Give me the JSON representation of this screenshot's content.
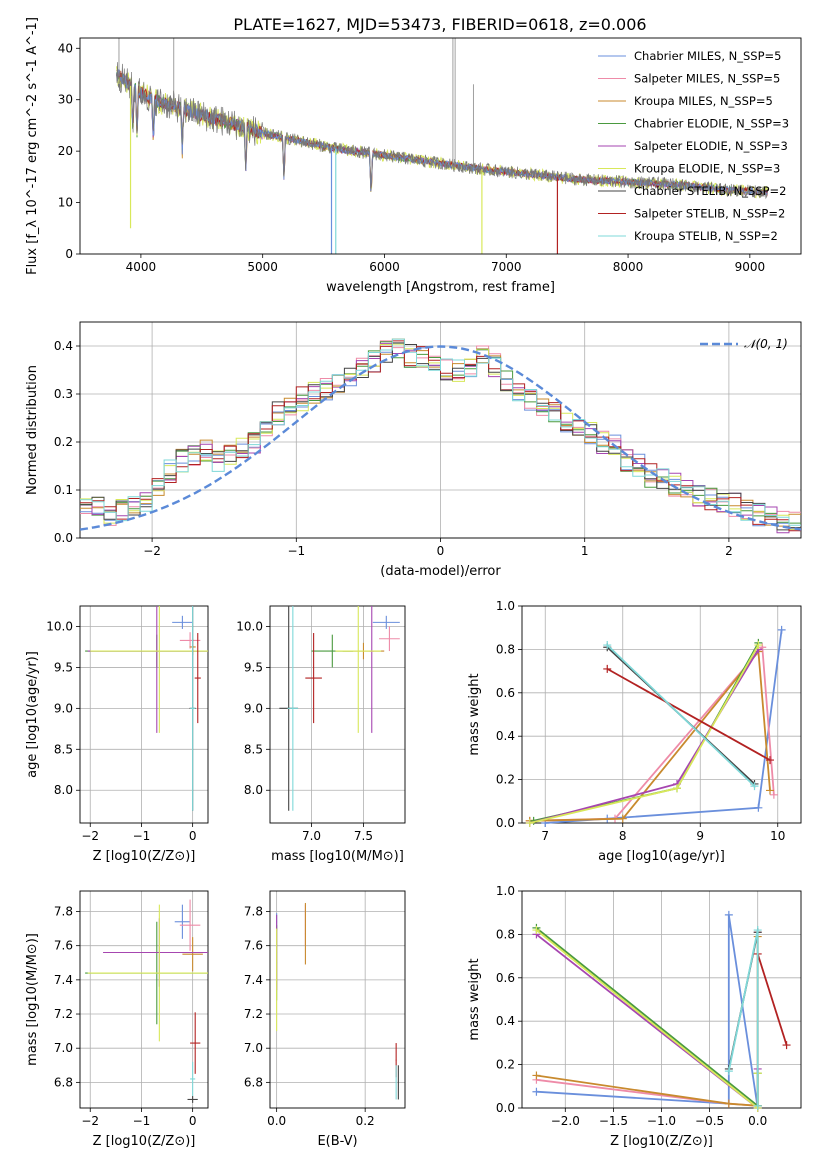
{
  "figure": {
    "title": "PLATE=1627, MJD=53473, FIBERID=0618, z=0.006"
  },
  "palette": [
    "#6a8fdc",
    "#ee8ba8",
    "#c88a2e",
    "#4a9a3f",
    "#a646b0",
    "#d8e85a",
    "#444444",
    "#b22222",
    "#7fd8d8"
  ],
  "chart_data": [
    {
      "type": "line",
      "id": "spectrum",
      "title": "PLATE=1627, MJD=53473, FIBERID=0618, z=0.006",
      "xlabel": "wavelength [Angstrom, rest frame]",
      "ylabel": "Flux [f_λ 10^-17 erg cm^-2 s^-1 A^-1]",
      "xlim": [
        3500,
        9420
      ],
      "ylim": [
        0,
        42
      ],
      "xticks": [
        4000,
        5000,
        6000,
        7000,
        8000,
        9000
      ],
      "yticks": [
        0,
        10,
        20,
        30,
        40
      ],
      "grid": false,
      "legend_position": "upper right",
      "series": [
        {
          "name": "Chabrier MILES, N_SSP=5",
          "kind": "model"
        },
        {
          "name": "Salpeter MILES, N_SSP=5",
          "kind": "model"
        },
        {
          "name": "Kroupa MILES, N_SSP=5",
          "kind": "model"
        },
        {
          "name": "Chabrier ELODIE, N_SSP=3",
          "kind": "model"
        },
        {
          "name": "Salpeter ELODIE, N_SSP=3",
          "kind": "model"
        },
        {
          "name": "Kroupa ELODIE, N_SSP=3",
          "kind": "model"
        },
        {
          "name": "Chabrier STELIB, N_SSP=2",
          "kind": "model"
        },
        {
          "name": "Salpeter STELIB, N_SSP=2",
          "kind": "model"
        },
        {
          "name": "Kroupa STELIB, N_SSP=2",
          "kind": "model"
        }
      ],
      "continuum_points": [
        [
          3800,
          35
        ],
        [
          3950,
          32
        ],
        [
          4100,
          30
        ],
        [
          4300,
          28.5
        ],
        [
          4500,
          27
        ],
        [
          4800,
          25
        ],
        [
          5000,
          23.5
        ],
        [
          5300,
          22
        ],
        [
          5600,
          20.5
        ],
        [
          5900,
          19.5
        ],
        [
          6200,
          18.5
        ],
        [
          6500,
          17.5
        ],
        [
          6800,
          16.5
        ],
        [
          7200,
          15.5
        ],
        [
          7600,
          14.5
        ],
        [
          8000,
          14
        ],
        [
          8400,
          13.5
        ],
        [
          8800,
          12.5
        ],
        [
          9150,
          12
        ]
      ]
    },
    {
      "type": "line",
      "id": "residuals",
      "xlabel": "(data-model)/error",
      "ylabel": "Normed distribution",
      "xlim": [
        -2.5,
        2.5
      ],
      "ylim": [
        0,
        0.45
      ],
      "xticks": [
        -2,
        -1,
        0,
        1,
        2
      ],
      "yticks": [
        0.0,
        0.1,
        0.2,
        0.3,
        0.4
      ],
      "grid": true,
      "legend_position": "upper right",
      "reference": {
        "name": "𝒩(0, 1)",
        "mean": 0,
        "sigma": 1
      },
      "hist_profile": [
        0.07,
        0.06,
        0.05,
        0.06,
        0.07,
        0.08,
        0.1,
        0.14,
        0.16,
        0.17,
        0.18,
        0.16,
        0.17,
        0.19,
        0.2,
        0.22,
        0.26,
        0.28,
        0.29,
        0.3,
        0.31,
        0.32,
        0.34,
        0.35,
        0.37,
        0.39,
        0.39,
        0.38,
        0.38,
        0.36,
        0.35,
        0.35,
        0.36,
        0.38,
        0.36,
        0.33,
        0.31,
        0.29,
        0.27,
        0.26,
        0.24,
        0.23,
        0.22,
        0.2,
        0.19,
        0.16,
        0.15,
        0.13,
        0.12,
        0.11,
        0.1,
        0.09,
        0.08,
        0.07,
        0.07,
        0.06,
        0.05,
        0.04,
        0.035,
        0.03
      ]
    },
    {
      "type": "scatter",
      "id": "age-vs-z",
      "xlabel": "Z [log10(Z/Z⊙)]",
      "ylabel": "age [log10(age/yr)]",
      "xlim": [
        -2.2,
        0.3
      ],
      "ylim": [
        7.6,
        10.25
      ],
      "xticks": [
        -2,
        -1,
        0
      ],
      "yticks": [
        8.0,
        8.5,
        9.0,
        9.5,
        10.0
      ],
      "grid": true,
      "points": [
        {
          "x": -0.2,
          "y": 10.05,
          "xerr": 0.2,
          "yerr": 0.08,
          "c": 0
        },
        {
          "x": -0.05,
          "y": 9.83,
          "xerr": 0.2,
          "yerr": 0.1,
          "c": 1
        },
        {
          "x": 0.0,
          "y": 9.75,
          "xerr": 0.06,
          "yerr": 0.1,
          "c": 2
        },
        {
          "x": -0.7,
          "y": 9.7,
          "xerr": 1.4,
          "yerr": 0.2,
          "c": 3
        },
        {
          "x": -0.7,
          "y": 9.7,
          "xerr": 1.35,
          "yerr": 1.0,
          "c": 4
        },
        {
          "x": -0.65,
          "y": 9.7,
          "xerr": 1.35,
          "yerr": 1.0,
          "c": 5
        },
        {
          "x": 0.0,
          "y": 9.0,
          "xerr": 0.06,
          "yerr": 1.25,
          "c": 6
        },
        {
          "x": 0.1,
          "y": 9.37,
          "xerr": 0.06,
          "yerr": 0.55,
          "c": 7
        },
        {
          "x": 0.0,
          "y": 9.0,
          "xerr": 0.05,
          "yerr": 1.25,
          "c": 8
        }
      ]
    },
    {
      "type": "scatter",
      "id": "age-vs-mass",
      "xlabel": "mass [log10(M/M⊙)]",
      "ylabel": "",
      "xlim": [
        6.6,
        7.9
      ],
      "ylim": [
        7.6,
        10.25
      ],
      "xticks": [
        7.0,
        7.5
      ],
      "yticks": [
        8.0,
        8.5,
        9.0,
        9.5,
        10.0
      ],
      "grid": true,
      "points": [
        {
          "x": 7.72,
          "y": 10.05,
          "xerr": 0.13,
          "yerr": 0.08,
          "c": 0
        },
        {
          "x": 7.75,
          "y": 9.85,
          "xerr": 0.1,
          "yerr": 0.15,
          "c": 1
        },
        {
          "x": 7.5,
          "y": 9.7,
          "xerr": 0.2,
          "yerr": 0.1,
          "c": 2
        },
        {
          "x": 7.2,
          "y": 9.7,
          "xerr": 0.2,
          "yerr": 0.2,
          "c": 3
        },
        {
          "x": 7.58,
          "y": 9.7,
          "xerr": 0.02,
          "yerr": 1.0,
          "c": 4
        },
        {
          "x": 7.45,
          "y": 9.7,
          "xerr": 0.22,
          "yerr": 1.0,
          "c": 5
        },
        {
          "x": 6.78,
          "y": 9.0,
          "xerr": 0.09,
          "yerr": 1.25,
          "c": 6
        },
        {
          "x": 7.02,
          "y": 9.37,
          "xerr": 0.08,
          "yerr": 0.55,
          "c": 7
        },
        {
          "x": 6.82,
          "y": 9.0,
          "xerr": 0.05,
          "yerr": 1.25,
          "c": 8
        }
      ]
    },
    {
      "type": "line",
      "id": "weight-vs-age",
      "xlabel": "age [log10(age/yr)]",
      "ylabel": "mass weight",
      "xlim": [
        6.7,
        10.3
      ],
      "ylim": [
        0,
        1.0
      ],
      "xticks": [
        7,
        8,
        9,
        10
      ],
      "yticks": [
        0.0,
        0.2,
        0.4,
        0.6,
        0.8,
        1.0
      ],
      "grid": true,
      "series": [
        {
          "c": 0,
          "x": [
            7.0,
            7.8,
            9.75,
            10.05
          ],
          "y": [
            0.0,
            0.02,
            0.07,
            0.89
          ]
        },
        {
          "c": 1,
          "x": [
            6.8,
            7.9,
            9.8,
            9.95
          ],
          "y": [
            0.01,
            0.02,
            0.81,
            0.13
          ]
        },
        {
          "c": 2,
          "x": [
            6.8,
            8.0,
            9.75,
            9.9
          ],
          "y": [
            0.01,
            0.02,
            0.79,
            0.15
          ]
        },
        {
          "c": 3,
          "x": [
            6.85,
            8.7,
            9.75
          ],
          "y": [
            0.01,
            0.16,
            0.83
          ]
        },
        {
          "c": 4,
          "x": [
            6.8,
            8.7,
            9.75
          ],
          "y": [
            0.0,
            0.18,
            0.8
          ]
        },
        {
          "c": 5,
          "x": [
            6.8,
            8.7,
            9.75
          ],
          "y": [
            0.0,
            0.16,
            0.82
          ]
        },
        {
          "c": 6,
          "x": [
            7.8,
            9.7
          ],
          "y": [
            0.81,
            0.18
          ]
        },
        {
          "c": 7,
          "x": [
            7.8,
            9.9
          ],
          "y": [
            0.71,
            0.29
          ]
        },
        {
          "c": 8,
          "x": [
            7.8,
            9.7
          ],
          "y": [
            0.82,
            0.17
          ]
        }
      ]
    },
    {
      "type": "scatter",
      "id": "mass-vs-z",
      "xlabel": "Z [log10(Z/Z⊙)]",
      "ylabel": "mass [log10(M/M⊙)]",
      "xlim": [
        -2.2,
        0.3
      ],
      "ylim": [
        6.65,
        7.92
      ],
      "xticks": [
        -2,
        -1,
        0
      ],
      "yticks": [
        6.8,
        7.0,
        7.2,
        7.4,
        7.6,
        7.8
      ],
      "grid": true,
      "points": [
        {
          "x": -0.2,
          "y": 7.74,
          "xerr": 0.15,
          "yerr": 0.1,
          "c": 0
        },
        {
          "x": -0.05,
          "y": 7.72,
          "xerr": 0.2,
          "yerr": 0.15,
          "c": 1
        },
        {
          "x": 0.0,
          "y": 7.55,
          "xerr": 0.2,
          "yerr": 0.1,
          "c": 2
        },
        {
          "x": -0.7,
          "y": 7.44,
          "xerr": 1.4,
          "yerr": 0.3,
          "c": 3
        },
        {
          "x": -0.65,
          "y": 7.56,
          "xerr": 1.1,
          "yerr": 0.2,
          "c": 4
        },
        {
          "x": -0.65,
          "y": 7.44,
          "xerr": 1.4,
          "yerr": 0.4,
          "c": 5
        },
        {
          "x": 0.0,
          "y": 6.7,
          "xerr": 0.1,
          "yerr": 0.02,
          "c": 6
        },
        {
          "x": 0.05,
          "y": 7.03,
          "xerr": 0.1,
          "yerr": 0.18,
          "c": 7
        },
        {
          "x": 0.0,
          "y": 6.82,
          "xerr": 0.05,
          "yerr": 0.1,
          "c": 8
        }
      ]
    },
    {
      "type": "scatter",
      "id": "mass-vs-ebv",
      "xlabel": "E(B-V)",
      "ylabel": "",
      "xlim": [
        -0.015,
        0.29
      ],
      "ylim": [
        6.65,
        7.92
      ],
      "xticks": [
        0.0,
        0.2
      ],
      "yticks": [
        6.8,
        7.0,
        7.2,
        7.4,
        7.6,
        7.8
      ],
      "grid": true,
      "points": [
        {
          "x": 0.0,
          "y": 7.74,
          "xerr": 0.001,
          "yerr": 0.05,
          "c": 0
        },
        {
          "x": 0.065,
          "y": 7.72,
          "xerr": 0.001,
          "yerr": 0.12,
          "c": 1
        },
        {
          "x": 0.065,
          "y": 7.67,
          "xerr": 0.001,
          "yerr": 0.18,
          "c": 2
        },
        {
          "x": 0.0,
          "y": 7.5,
          "xerr": 0.001,
          "yerr": 0.22,
          "c": 3
        },
        {
          "x": 0.0,
          "y": 7.56,
          "xerr": 0.001,
          "yerr": 0.22,
          "c": 4
        },
        {
          "x": 0.0,
          "y": 7.4,
          "xerr": 0.001,
          "yerr": 0.3,
          "c": 5
        },
        {
          "x": 0.275,
          "y": 6.8,
          "xerr": 0.001,
          "yerr": 0.1,
          "c": 6
        },
        {
          "x": 0.27,
          "y": 6.93,
          "xerr": 0.001,
          "yerr": 0.1,
          "c": 7
        },
        {
          "x": 0.27,
          "y": 6.8,
          "xerr": 0.001,
          "yerr": 0.1,
          "c": 8
        }
      ]
    },
    {
      "type": "line",
      "id": "weight-vs-z",
      "xlabel": "Z [log10(Z/Z⊙)]",
      "ylabel": "mass weight",
      "xlim": [
        -2.45,
        0.45
      ],
      "ylim": [
        0,
        1.0
      ],
      "xticks": [
        -2.0,
        -1.5,
        -1.0,
        -0.5,
        0.0
      ],
      "yticks": [
        0.0,
        0.2,
        0.4,
        0.6,
        0.8,
        1.0
      ],
      "grid": true,
      "series": [
        {
          "c": 0,
          "x": [
            -2.3,
            -0.3,
            -0.3,
            0.0
          ],
          "y": [
            0.075,
            0.02,
            0.89,
            0.0
          ]
        },
        {
          "c": 1,
          "x": [
            -2.3,
            -0.3,
            0.0,
            0.0
          ],
          "y": [
            0.13,
            0.02,
            0.01,
            0.81
          ]
        },
        {
          "c": 2,
          "x": [
            -2.3,
            -0.3,
            0.0,
            0.0
          ],
          "y": [
            0.15,
            0.02,
            0.01,
            0.79
          ]
        },
        {
          "c": 3,
          "x": [
            -2.3,
            0.0,
            0.0
          ],
          "y": [
            0.83,
            0.01,
            0.16
          ]
        },
        {
          "c": 4,
          "x": [
            -2.3,
            0.0,
            0.0
          ],
          "y": [
            0.8,
            0.0,
            0.18
          ]
        },
        {
          "c": 5,
          "x": [
            -2.3,
            0.0,
            0.0
          ],
          "y": [
            0.82,
            0.0,
            0.16
          ]
        },
        {
          "c": 6,
          "x": [
            -0.3,
            0.0
          ],
          "y": [
            0.18,
            0.81
          ]
        },
        {
          "c": 7,
          "x": [
            0.0,
            0.3
          ],
          "y": [
            0.71,
            0.29
          ]
        },
        {
          "c": 8,
          "x": [
            -0.3,
            0.0,
            0.0
          ],
          "y": [
            0.17,
            0.82,
            0.01
          ]
        }
      ]
    }
  ]
}
